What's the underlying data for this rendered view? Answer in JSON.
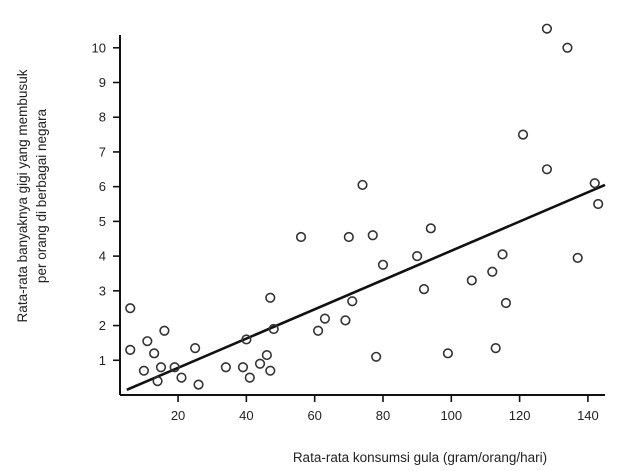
{
  "chart_data": {
    "type": "scatter",
    "title": "",
    "xlabel": "Rata-rata konsumsi gula (gram/orang/hari)",
    "ylabel_lines": [
      "Rata-rata banyaknya gigi yang membusuk",
      "per orang  di berbagai negara"
    ],
    "xlim": [
      3,
      145
    ],
    "ylim": [
      0,
      10.8
    ],
    "xticks": [
      20,
      40,
      60,
      80,
      100,
      120,
      140
    ],
    "yticks": [
      1,
      2,
      3,
      4,
      5,
      6,
      7,
      8,
      9,
      10
    ],
    "grid": false,
    "points": [
      {
        "x": 6,
        "y": 2.5
      },
      {
        "x": 6,
        "y": 1.3
      },
      {
        "x": 10,
        "y": 0.7
      },
      {
        "x": 11,
        "y": 1.55
      },
      {
        "x": 13,
        "y": 1.2
      },
      {
        "x": 14,
        "y": 0.4
      },
      {
        "x": 15,
        "y": 0.8
      },
      {
        "x": 16,
        "y": 1.85
      },
      {
        "x": 19,
        "y": 0.8
      },
      {
        "x": 21,
        "y": 0.5
      },
      {
        "x": 25,
        "y": 1.35
      },
      {
        "x": 26,
        "y": 0.3
      },
      {
        "x": 34,
        "y": 0.8
      },
      {
        "x": 39,
        "y": 0.8
      },
      {
        "x": 40,
        "y": 1.6
      },
      {
        "x": 41,
        "y": 0.5
      },
      {
        "x": 44,
        "y": 0.9
      },
      {
        "x": 46,
        "y": 1.15
      },
      {
        "x": 47,
        "y": 0.7
      },
      {
        "x": 47,
        "y": 2.8
      },
      {
        "x": 48,
        "y": 1.9
      },
      {
        "x": 56,
        "y": 4.55
      },
      {
        "x": 61,
        "y": 1.85
      },
      {
        "x": 63,
        "y": 2.2
      },
      {
        "x": 69,
        "y": 2.15
      },
      {
        "x": 70,
        "y": 4.55
      },
      {
        "x": 71,
        "y": 2.7
      },
      {
        "x": 74,
        "y": 6.05
      },
      {
        "x": 77,
        "y": 4.6
      },
      {
        "x": 78,
        "y": 1.1
      },
      {
        "x": 80,
        "y": 3.75
      },
      {
        "x": 90,
        "y": 4.0
      },
      {
        "x": 92,
        "y": 3.05
      },
      {
        "x": 94,
        "y": 4.8
      },
      {
        "x": 99,
        "y": 1.2
      },
      {
        "x": 106,
        "y": 3.3
      },
      {
        "x": 112,
        "y": 3.55
      },
      {
        "x": 113,
        "y": 1.35
      },
      {
        "x": 115,
        "y": 4.05
      },
      {
        "x": 116,
        "y": 2.65
      },
      {
        "x": 121,
        "y": 7.5
      },
      {
        "x": 128,
        "y": 6.5
      },
      {
        "x": 128,
        "y": 10.55
      },
      {
        "x": 134,
        "y": 10.0
      },
      {
        "x": 137,
        "y": 3.95
      },
      {
        "x": 142,
        "y": 6.1
      },
      {
        "x": 143,
        "y": 5.5
      }
    ],
    "trendline": {
      "x": [
        5,
        145
      ],
      "y": [
        0.15,
        6.05
      ]
    },
    "colors": {
      "axis": "#111111",
      "marker": "#333333",
      "line": "#111111"
    }
  }
}
